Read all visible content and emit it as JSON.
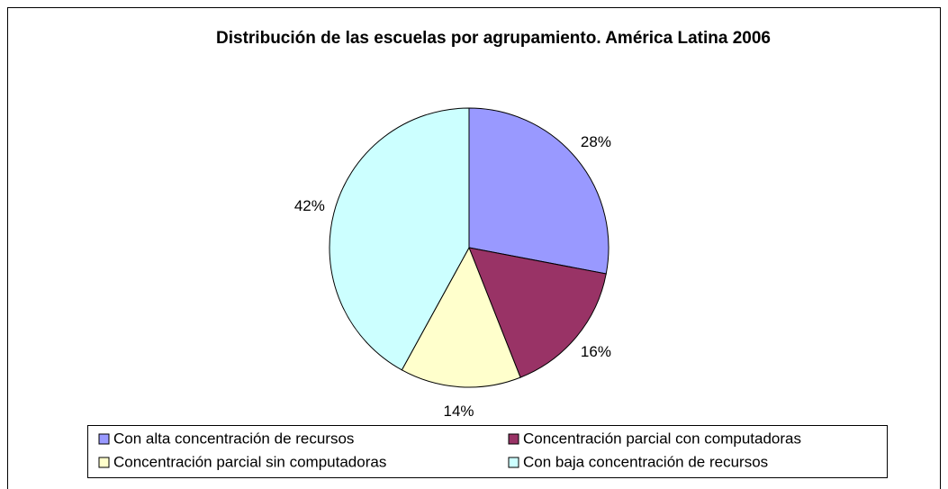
{
  "chart_data": {
    "type": "pie",
    "title": "Distribución de las escuelas por agrupamiento. América Latina 2006",
    "categories": [
      "Con alta concentración de recursos",
      "Concentración parcial con computadoras",
      "Concentración parcial sin computadoras",
      "Con baja concentración de recursos"
    ],
    "values": [
      28,
      16,
      14,
      42
    ],
    "value_labels": [
      "28%",
      "16%",
      "14%",
      "42%"
    ],
    "colors": [
      "#9999ff",
      "#993366",
      "#ffffcc",
      "#ccffff"
    ],
    "legend": "bottom"
  }
}
